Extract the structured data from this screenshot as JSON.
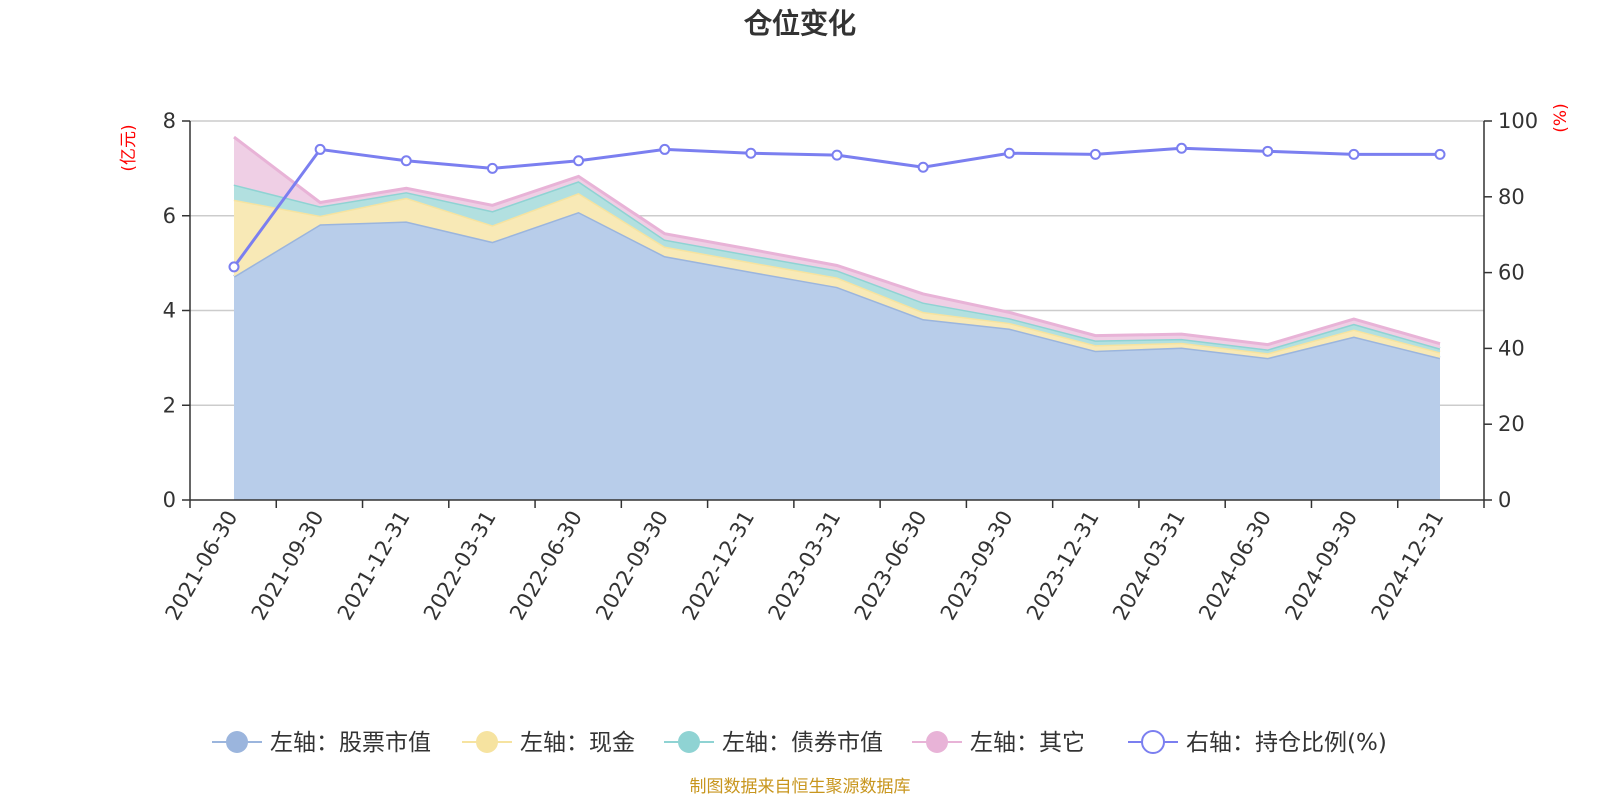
{
  "chart_data": {
    "type": "area",
    "title": "仓位变化",
    "categories": [
      "2021-06-30",
      "2021-09-30",
      "2021-12-31",
      "2022-03-31",
      "2022-06-30",
      "2022-09-30",
      "2022-12-31",
      "2023-03-31",
      "2023-06-30",
      "2023-09-30",
      "2023-12-31",
      "2024-03-31",
      "2024-06-30",
      "2024-09-30",
      "2024-12-31"
    ],
    "left_axis": {
      "unit": "(亿元)",
      "ylim": [
        0,
        8
      ],
      "ticks": [
        "0",
        "2",
        "4",
        "6",
        "8"
      ]
    },
    "right_axis": {
      "unit": "(%)",
      "ylim": [
        0,
        100
      ],
      "ticks": [
        "0",
        "20",
        "40",
        "60",
        "80",
        "100"
      ]
    },
    "stacked": true,
    "series": [
      {
        "name": "左轴：股票市值",
        "axis": "left",
        "type": "area",
        "color": "#9bb5dd",
        "fill": "#b8cdea",
        "values": [
          4.72,
          5.82,
          5.88,
          5.45,
          6.08,
          5.15,
          4.82,
          4.5,
          3.82,
          3.62,
          3.15,
          3.22,
          3.0,
          3.45,
          3.0
        ]
      },
      {
        "name": "左轴：现金",
        "axis": "left",
        "type": "area",
        "color": "#f6e3a0",
        "fill": "#f8e9b6",
        "values": [
          1.62,
          0.18,
          0.5,
          0.35,
          0.4,
          0.2,
          0.2,
          0.2,
          0.15,
          0.12,
          0.12,
          0.1,
          0.1,
          0.15,
          0.12
        ]
      },
      {
        "name": "左轴：债券市值",
        "axis": "left",
        "type": "area",
        "color": "#8fd3d3",
        "fill": "#b2e0e0",
        "values": [
          0.32,
          0.2,
          0.12,
          0.3,
          0.25,
          0.15,
          0.15,
          0.15,
          0.2,
          0.1,
          0.1,
          0.08,
          0.08,
          0.12,
          0.08
        ]
      },
      {
        "name": "左轴：其它",
        "axis": "left",
        "type": "area",
        "color": "#e8b3d7",
        "fill": "#efcfe5",
        "values": [
          1.0,
          0.08,
          0.08,
          0.12,
          0.1,
          0.12,
          0.12,
          0.1,
          0.18,
          0.12,
          0.1,
          0.1,
          0.1,
          0.1,
          0.1
        ]
      },
      {
        "name": "右轴：持仓比例(%)",
        "axis": "right",
        "type": "line",
        "color": "#7b7ff0",
        "values": [
          61.5,
          92.5,
          89.5,
          87.5,
          89.5,
          92.5,
          91.5,
          91.0,
          87.8,
          91.5,
          91.2,
          92.8,
          92.0,
          91.2,
          91.2
        ]
      }
    ],
    "legend_position": "bottom",
    "grid": true
  },
  "footer": {
    "source": "制图数据来自恒生聚源数据库"
  }
}
